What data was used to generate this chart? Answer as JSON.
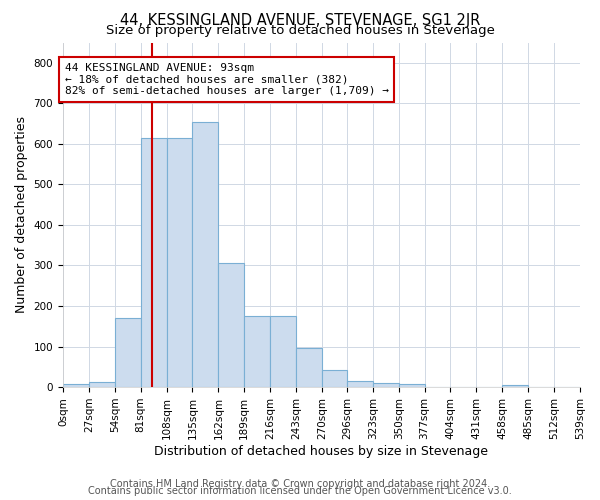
{
  "title": "44, KESSINGLAND AVENUE, STEVENAGE, SG1 2JR",
  "subtitle": "Size of property relative to detached houses in Stevenage",
  "xlabel": "Distribution of detached houses by size in Stevenage",
  "ylabel": "Number of detached properties",
  "footnote1": "Contains HM Land Registry data © Crown copyright and database right 2024.",
  "footnote2": "Contains public sector information licensed under the Open Government Licence v3.0.",
  "annotation_line1": "44 KESSINGLAND AVENUE: 93sqm",
  "annotation_line2": "← 18% of detached houses are smaller (382)",
  "annotation_line3": "82% of semi-detached houses are larger (1,709) →",
  "bar_color": "#ccdcee",
  "bar_edge_color": "#7aafd4",
  "vline_color": "#cc0000",
  "vline_x": 93,
  "bin_edges": [
    0,
    27,
    54,
    81,
    108,
    135,
    162,
    189,
    216,
    243,
    270,
    296,
    323,
    350,
    377,
    404,
    431,
    458,
    485,
    512,
    539
  ],
  "bar_heights": [
    7,
    12,
    170,
    615,
    615,
    655,
    305,
    175,
    175,
    97,
    42,
    15,
    10,
    8,
    0,
    0,
    0,
    5,
    0,
    0
  ],
  "ylim": [
    0,
    850
  ],
  "yticks": [
    0,
    100,
    200,
    300,
    400,
    500,
    600,
    700,
    800
  ],
  "bg_color": "#ffffff",
  "grid_color": "#d0d8e4",
  "title_fontsize": 10.5,
  "subtitle_fontsize": 9.5,
  "axis_label_fontsize": 9,
  "tick_fontsize": 7.5,
  "footnote_fontsize": 7,
  "annotation_fontsize": 8
}
